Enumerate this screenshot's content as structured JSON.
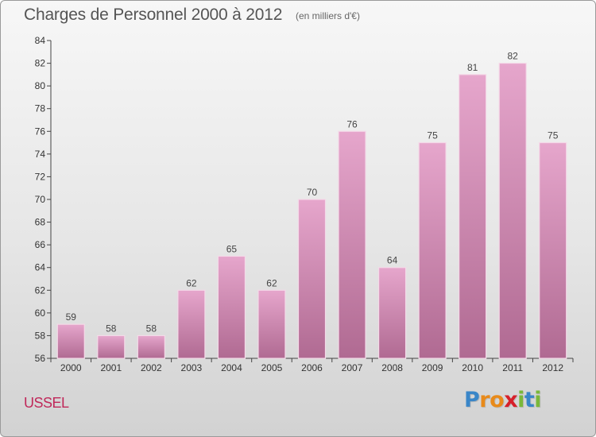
{
  "header": {
    "title": "Charges de Personnel 2000 à 2012",
    "subtitle": "(en milliers d'€)"
  },
  "footer": {
    "place": "USSEL",
    "logo_letters": [
      "P",
      "r",
      "o",
      "x",
      "i",
      "t",
      "i"
    ],
    "logo_colors": [
      "#3a86c8",
      "#e88a1a",
      "#e88a1a",
      "#d6202a",
      "#7ab83a",
      "#3a86c8",
      "#7ab83a"
    ]
  },
  "chart_data": {
    "type": "bar",
    "categories": [
      "2000",
      "2001",
      "2002",
      "2003",
      "2004",
      "2005",
      "2006",
      "2007",
      "2008",
      "2009",
      "2010",
      "2011",
      "2012"
    ],
    "values": [
      59,
      58,
      58,
      62,
      65,
      62,
      70,
      76,
      64,
      75,
      81,
      82,
      75
    ],
    "ylim": [
      56,
      84
    ],
    "yticks": [
      56,
      58,
      60,
      62,
      64,
      66,
      68,
      70,
      72,
      74,
      76,
      78,
      80,
      82,
      84
    ],
    "grid": false,
    "bar_color_top": "#e6a6cc",
    "bar_color_bottom": "#b06a92"
  }
}
